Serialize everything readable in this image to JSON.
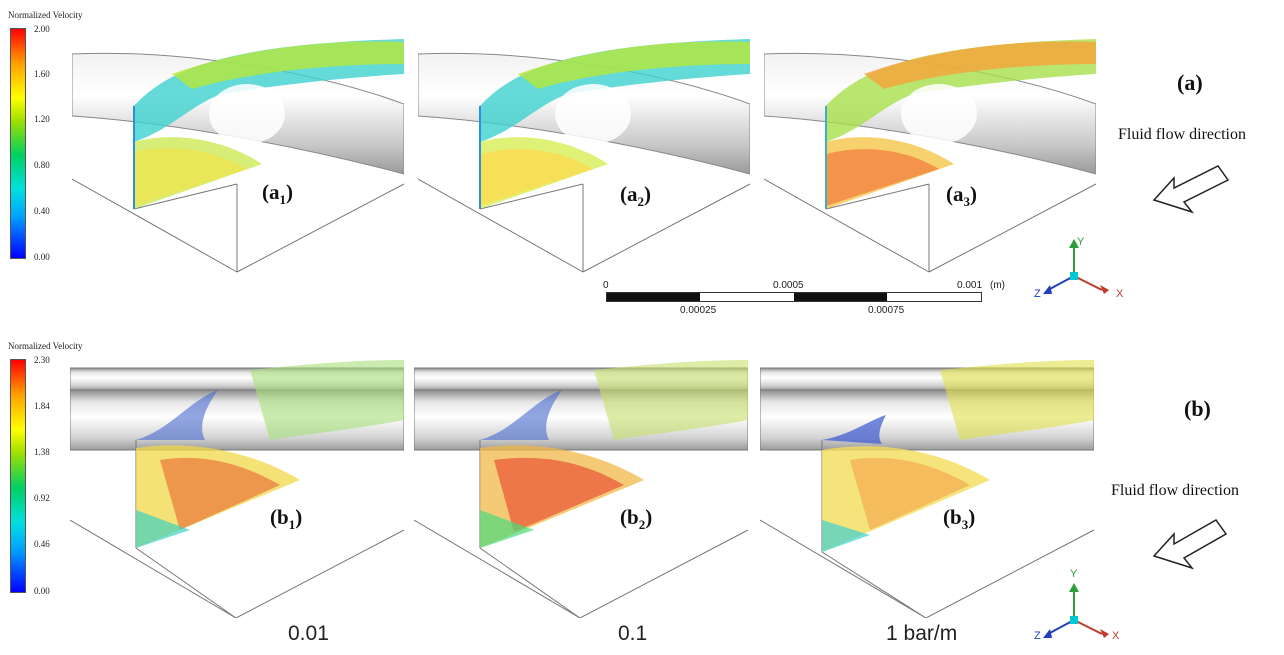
{
  "colorbar_a": {
    "title": "Normalized Velocity",
    "ticks": [
      "2.00",
      "1.60",
      "1.20",
      "0.80",
      "0.40",
      "0.00"
    ]
  },
  "colorbar_b": {
    "title": "Normalized Velocity",
    "ticks": [
      "2.30",
      "1.84",
      "1.38",
      "0.92",
      "0.46",
      "0.00"
    ]
  },
  "row_a": {
    "label": "(a)",
    "panels": [
      {
        "main": "(a",
        "sub": "1",
        "close": ")"
      },
      {
        "main": "(a",
        "sub": "2",
        "close": ")"
      },
      {
        "main": "(a",
        "sub": "3",
        "close": ")"
      }
    ],
    "flow_direction": "Fluid flow direction"
  },
  "row_b": {
    "label": "(b)",
    "panels": [
      {
        "main": "(b",
        "sub": "1",
        "close": ")"
      },
      {
        "main": "(b",
        "sub": "2",
        "close": ")"
      },
      {
        "main": "(b",
        "sub": "3",
        "close": ")"
      }
    ],
    "flow_direction": "Fluid flow direction"
  },
  "scale_bar": {
    "top_labels": [
      "0",
      "0.0005",
      "0.001"
    ],
    "unit": "(m)",
    "bottom_labels": [
      "0.00025",
      "0.00075"
    ]
  },
  "pressure_gradients": [
    "0.01",
    "0.1",
    "1 bar/m"
  ],
  "axes": {
    "x": "X",
    "y": "Y",
    "z": "Z"
  },
  "colors": {
    "x_axis": "#c0392b",
    "y_axis": "#2e9e3a",
    "z_axis": "#1f3fbf",
    "origin": "#00c8d0"
  }
}
